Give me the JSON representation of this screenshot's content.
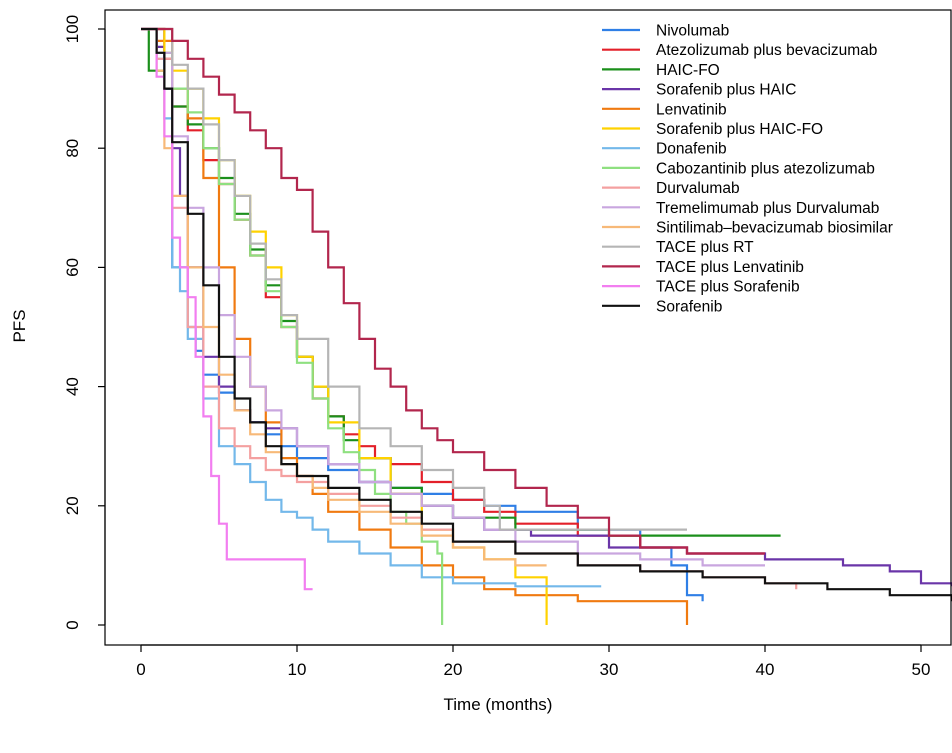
{
  "chart_data": {
    "type": "line",
    "step": true,
    "title": "",
    "xlabel": "Time (months)",
    "ylabel": "PFS",
    "xlim": [
      -2.3,
      52
    ],
    "ylim": [
      -4,
      104
    ],
    "xticks": [
      0,
      10,
      20,
      30,
      40,
      50
    ],
    "yticks": [
      0,
      20,
      40,
      60,
      80,
      100
    ],
    "grid": false,
    "legend_position": "top-right",
    "series": [
      {
        "name": "Nivolumab",
        "color": "#2f7fe6",
        "x": [
          0,
          1.5,
          2,
          3,
          3.5,
          4,
          5,
          6,
          7,
          8,
          9,
          10,
          12,
          14,
          16,
          18,
          20,
          22,
          24,
          28,
          32,
          34,
          35,
          36
        ],
        "y": [
          100,
          90,
          60,
          50,
          46,
          42,
          39,
          36,
          34,
          32,
          30,
          28,
          26,
          24,
          23,
          22,
          21,
          20,
          19,
          16,
          13,
          10,
          5,
          4
        ]
      },
      {
        "name": "Atezolizumab plus bevacizumab",
        "color": "#e3202a",
        "x": [
          0,
          1.5,
          2,
          3,
          4,
          5,
          6,
          7,
          8,
          9,
          10,
          11,
          12,
          13,
          14,
          15,
          16,
          18,
          20,
          22,
          24,
          28,
          32,
          35,
          40
        ],
        "y": [
          100,
          95,
          87,
          83,
          78,
          74,
          68,
          62,
          55,
          50,
          45,
          38,
          35,
          32,
          30,
          28,
          27,
          24,
          21,
          19,
          17,
          15,
          13,
          12,
          12
        ]
      },
      {
        "name": "HAIC-FO",
        "color": "#1b8f1b",
        "x": [
          0,
          0.5,
          1.5,
          2,
          3,
          4,
          5,
          6,
          7,
          8,
          9,
          10,
          11,
          12,
          13,
          14,
          16,
          18,
          20,
          24,
          30,
          35,
          41
        ],
        "y": [
          100,
          93,
          90,
          87,
          84,
          80,
          75,
          69,
          63,
          57,
          51,
          45,
          40,
          35,
          31,
          28,
          23,
          20,
          18,
          16,
          15,
          15,
          15
        ]
      },
      {
        "name": "Sorafenib plus HAIC",
        "color": "#6a35a8",
        "x": [
          0,
          1,
          1.5,
          2,
          2.5,
          3,
          4,
          5,
          6,
          7,
          8,
          10,
          12,
          14,
          16,
          18,
          20,
          22,
          25,
          30,
          35,
          40,
          45,
          48,
          50,
          52
        ],
        "y": [
          100,
          97,
          90,
          80,
          72,
          60,
          45,
          40,
          36,
          34,
          33,
          30,
          27,
          24,
          22,
          20,
          18,
          16,
          15,
          13,
          12,
          11,
          10,
          9,
          7,
          6.5
        ]
      },
      {
        "name": "Lenvatinib",
        "color": "#f07a10",
        "x": [
          0,
          1,
          2,
          3,
          4,
          5,
          6,
          7,
          8,
          9,
          10,
          11,
          12,
          14,
          16,
          18,
          20,
          22,
          24,
          28,
          32,
          35,
          35
        ],
        "y": [
          100,
          98,
          90,
          85,
          75,
          60,
          48,
          40,
          34,
          28,
          25,
          22,
          19,
          16,
          13,
          10,
          8,
          6,
          5,
          4,
          4,
          4,
          0
        ]
      },
      {
        "name": "Sorafenib plus HAIC-FO",
        "color": "#ffd200",
        "x": [
          0,
          1,
          1.5,
          2,
          3,
          4,
          5,
          6,
          7,
          8,
          9,
          10,
          11,
          12,
          14,
          16,
          18,
          20,
          22,
          24,
          26,
          26
        ],
        "y": [
          100,
          100,
          96,
          93,
          90,
          85,
          78,
          72,
          66,
          60,
          52,
          45,
          40,
          34,
          28,
          22,
          16,
          13,
          11,
          8,
          6,
          0
        ]
      },
      {
        "name": "Donafenib",
        "color": "#73b8ea",
        "x": [
          0,
          1,
          1.5,
          2,
          2.5,
          3,
          4,
          5,
          6,
          7,
          8,
          9,
          10,
          11,
          12,
          14,
          16,
          18,
          20,
          24,
          28,
          29.5
        ],
        "y": [
          100,
          95,
          85,
          60,
          56,
          48,
          38,
          30,
          27,
          24,
          21,
          19,
          18,
          16,
          14,
          12,
          10,
          8,
          7,
          6.5,
          6.5,
          6.5
        ]
      },
      {
        "name": "Cabozantinib plus atezolizumab",
        "color": "#8fe080",
        "x": [
          0,
          1,
          2,
          3,
          4,
          5,
          6,
          7,
          8,
          9,
          10,
          11,
          12,
          13,
          14,
          15,
          16,
          17,
          18,
          19,
          19.3,
          19.3
        ],
        "y": [
          100,
          96,
          90,
          86,
          80,
          74,
          68,
          62,
          56,
          50,
          44,
          38,
          33,
          29,
          26,
          22,
          19,
          17,
          14,
          12,
          10,
          0
        ]
      },
      {
        "name": "Durvalumab",
        "color": "#f4a0a0",
        "x": [
          0,
          1,
          2,
          3,
          4,
          5,
          6,
          7,
          8,
          9,
          10,
          12,
          14,
          16,
          18,
          20,
          24,
          28,
          32,
          36,
          40,
          42
        ],
        "y": [
          100,
          95,
          70,
          50,
          40,
          33,
          30,
          28,
          26,
          25,
          24,
          22,
          20,
          18,
          16,
          14,
          12,
          10,
          9,
          8,
          7,
          6
        ]
      },
      {
        "name": "Tremelimumab plus Durvalumab",
        "color": "#c9a6df",
        "x": [
          0,
          1,
          2,
          3,
          4,
          5,
          6,
          7,
          8,
          9,
          10,
          12,
          14,
          16,
          18,
          20,
          22,
          24,
          28,
          32,
          36,
          40
        ],
        "y": [
          100,
          96,
          82,
          70,
          60,
          52,
          45,
          40,
          36,
          33,
          30,
          27,
          24,
          22,
          20,
          18,
          16,
          14,
          12,
          11,
          10,
          10
        ]
      },
      {
        "name": "Sintilimab–bevacizumab biosimilar",
        "color": "#f7b978",
        "x": [
          0,
          1,
          1.5,
          2,
          3,
          4,
          5,
          6,
          7,
          8,
          9,
          10,
          11,
          12,
          14,
          16,
          18,
          20,
          22,
          24,
          26
        ],
        "y": [
          100,
          93,
          80,
          72,
          60,
          50,
          42,
          36,
          32,
          29,
          27,
          25,
          23,
          21,
          19,
          17,
          15,
          13,
          11,
          10,
          10
        ]
      },
      {
        "name": "TACE plus RT",
        "color": "#b5b5b5",
        "x": [
          0,
          1,
          2,
          3,
          4,
          5,
          6,
          7,
          8,
          9,
          10,
          12,
          14,
          16,
          18,
          20,
          22,
          23,
          26,
          30,
          35
        ],
        "y": [
          100,
          100,
          94,
          90,
          84,
          78,
          72,
          64,
          58,
          52,
          48,
          40,
          33,
          30,
          26,
          23,
          20,
          16,
          16,
          16,
          16
        ]
      },
      {
        "name": "TACE plus Lenvatinib",
        "color": "#b2264d",
        "x": [
          0,
          1,
          2,
          3,
          4,
          5,
          6,
          7,
          8,
          9,
          10,
          11,
          12,
          13,
          14,
          15,
          16,
          17,
          18,
          19,
          20,
          22,
          24,
          26,
          28,
          30,
          32,
          35,
          38,
          40
        ],
        "y": [
          100,
          100,
          98,
          95,
          92,
          89,
          86,
          83,
          80,
          75,
          73,
          66,
          60,
          54,
          48,
          43,
          40,
          36,
          33,
          31,
          29,
          26,
          23,
          20,
          18,
          15,
          13,
          12,
          12,
          12
        ]
      },
      {
        "name": "TACE plus Sorafenib",
        "color": "#f27ef0",
        "x": [
          0,
          1,
          1.5,
          2,
          2.5,
          3,
          3.5,
          4,
          4.5,
          5,
          5.5,
          6,
          7,
          8,
          9,
          10,
          10.5,
          11
        ],
        "y": [
          100,
          92,
          82,
          65,
          60,
          55,
          45,
          35,
          25,
          17,
          11,
          11,
          11,
          11,
          11,
          11,
          6,
          6
        ]
      },
      {
        "name": "Sorafenib",
        "color": "#111111",
        "x": [
          0,
          1,
          1.5,
          2,
          3,
          4,
          5,
          6,
          7,
          8,
          9,
          10,
          12,
          14,
          16,
          18,
          20,
          24,
          28,
          32,
          36,
          40,
          44,
          48,
          52
        ],
        "y": [
          100,
          96,
          90,
          81,
          69,
          57,
          45,
          38,
          34,
          30,
          27,
          25,
          23,
          21,
          19,
          17,
          14,
          12,
          10,
          9,
          8,
          7,
          6,
          5,
          4
        ]
      }
    ]
  }
}
